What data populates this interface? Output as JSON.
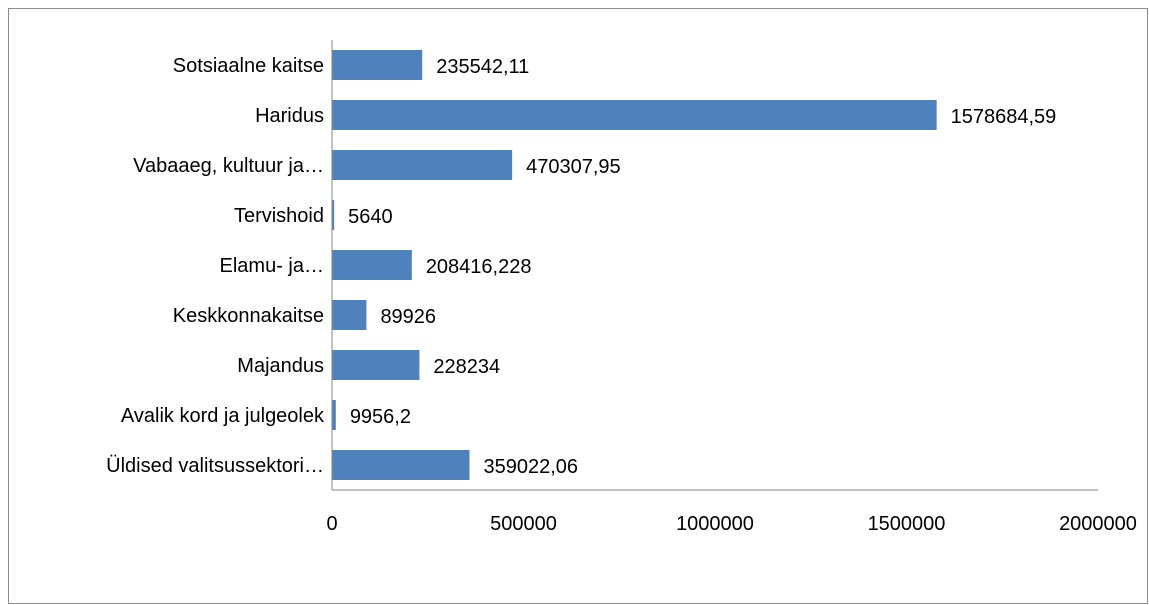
{
  "chart_data": {
    "type": "bar",
    "orientation": "horizontal",
    "title": "",
    "xlabel": "",
    "ylabel": "",
    "categories": [
      "Sotsiaalne kaitse",
      "Haridus",
      "Vabaaeg, kultuur ja…",
      "Tervishoid",
      "Elamu- ja…",
      "Keskkonnakaitse",
      "Majandus",
      "Avalik kord ja julgeolek",
      "Üldised valitsussektori…"
    ],
    "values": [
      235542.11,
      1578684.59,
      470307.95,
      5640,
      208416.228,
      89926,
      228234,
      9956.2,
      359022.06
    ],
    "data_labels": [
      "235542,11",
      "1578684,59",
      "470307,95",
      "5640",
      "208416,228",
      "89926",
      "228234",
      "9956,2",
      "359022,06"
    ],
    "xlim": [
      0,
      2000000
    ],
    "x_ticks": [
      0,
      500000,
      1000000,
      1500000,
      2000000
    ],
    "x_tick_labels": [
      "0",
      "500000",
      "1000000",
      "1500000",
      "2000000"
    ],
    "grid": false,
    "legend": "none",
    "bar_color": "#4f81bd"
  }
}
